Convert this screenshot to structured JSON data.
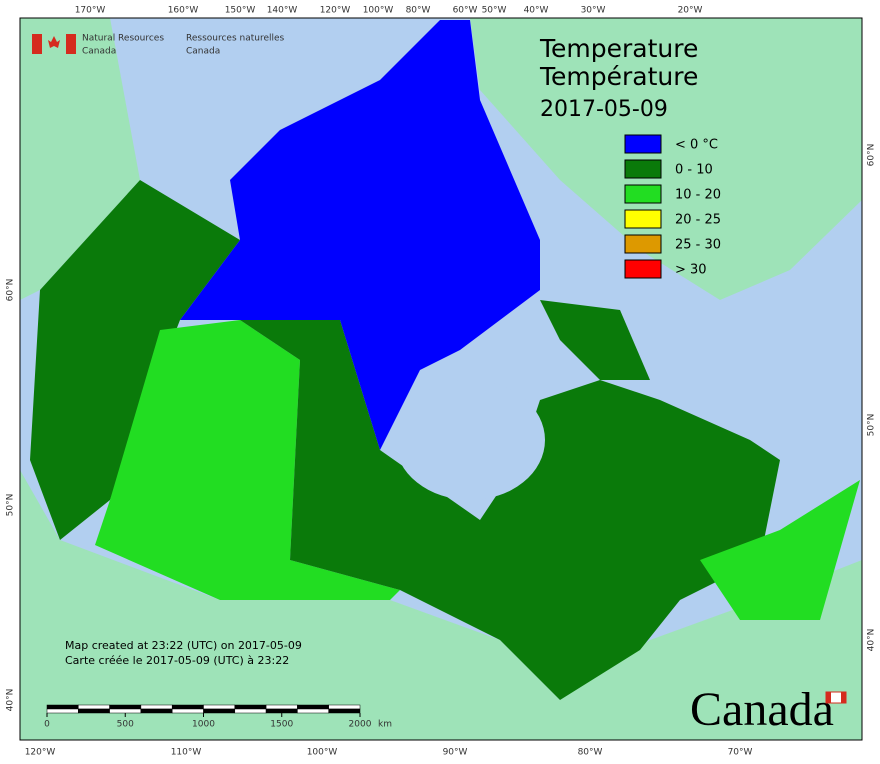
{
  "agency": {
    "english": [
      "Natural Resources",
      "Canada"
    ],
    "french": [
      "Ressources naturelles",
      "Canada"
    ]
  },
  "title": [
    "Temperature",
    "Température",
    "2017-05-09"
  ],
  "legend": [
    {
      "label": "< 0 °C",
      "color": "#0000ff"
    },
    {
      "label": "0 - 10",
      "color": "#0a7a0a"
    },
    {
      "label": "10 - 20",
      "color": "#22dd22"
    },
    {
      "label": "20 - 25",
      "color": "#ffff00"
    },
    {
      "label": "25 - 30",
      "color": "#dd9900"
    },
    {
      "label": "> 30",
      "color": "#ff0000"
    }
  ],
  "top_labels": [
    "170°W",
    "160°W",
    "150°W",
    "140°W",
    "120°W",
    "100°W",
    "80°W",
    "60°W",
    "50°W",
    "40°W",
    "30°W",
    "20°W"
  ],
  "bottom_labels": [
    "120°W",
    "110°W",
    "100°W",
    "90°W",
    "80°W",
    "70°W"
  ],
  "left_labels": [
    "60°N",
    "50°N",
    "40°N"
  ],
  "right_labels": [
    "60°N",
    "50°N",
    "40°N"
  ],
  "credit": [
    "Map created at 23:22 (UTC) on 2017-05-09",
    "Carte créée le 2017-05-09 (UTC) à 23:22"
  ],
  "scale": {
    "ticks": [
      0,
      500,
      1000,
      1500,
      2000
    ],
    "unit": "km"
  },
  "wordmark": "Canada"
}
